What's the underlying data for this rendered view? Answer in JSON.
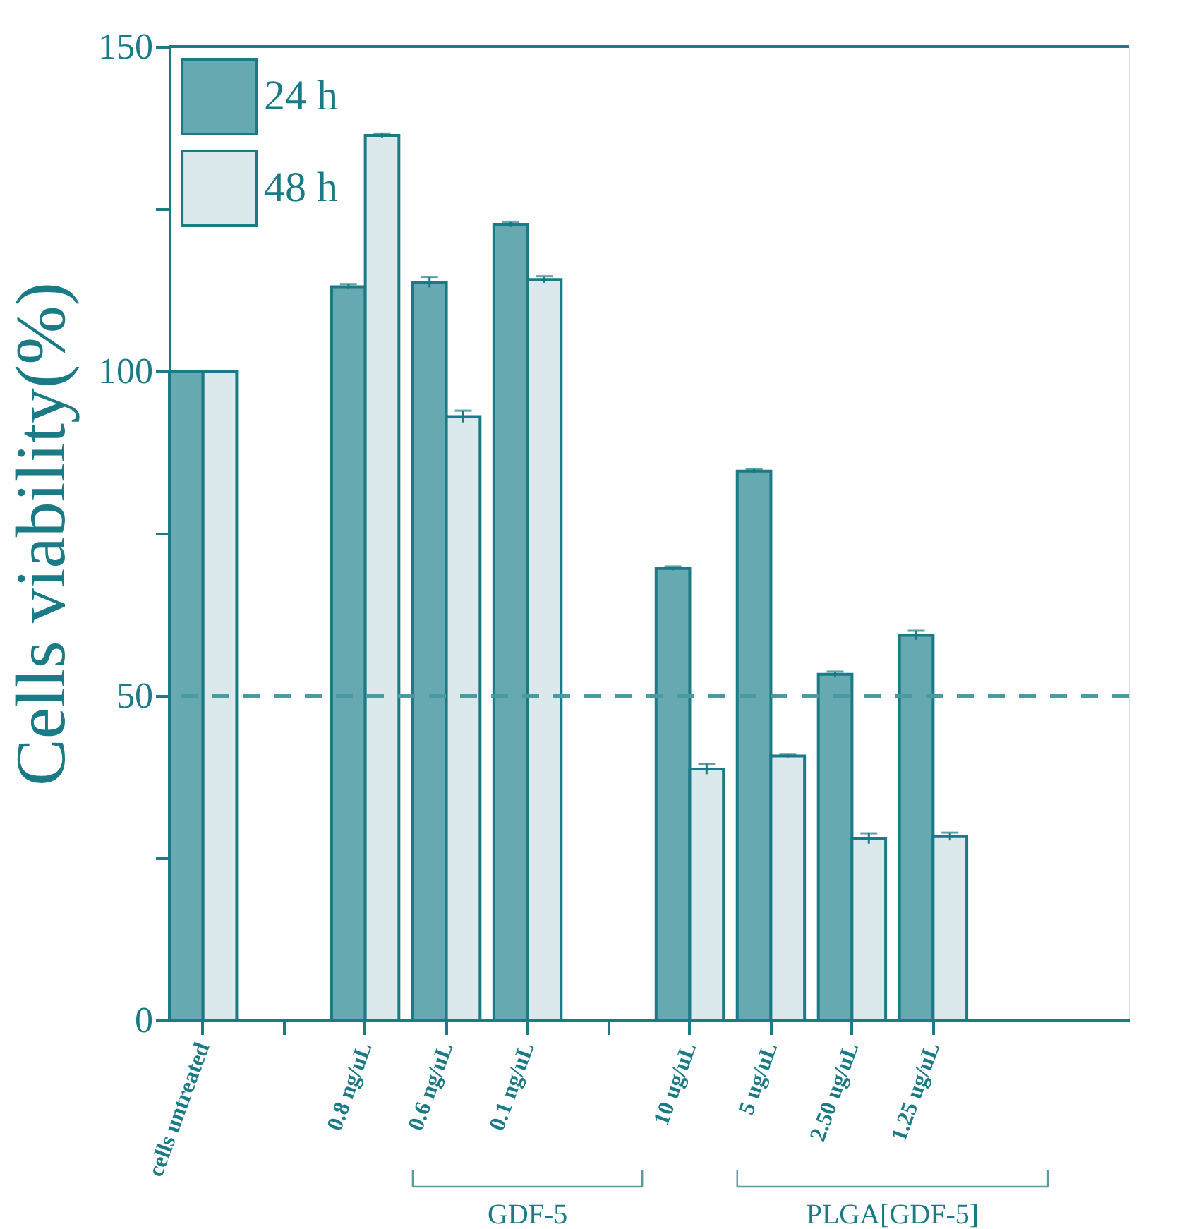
{
  "chart_data": {
    "type": "bar",
    "ylabel": "Cells viability(%)",
    "categories": [
      "cells untreated",
      null,
      "0.8 ng/uL",
      "0.6 ng/uL",
      "0.1 ng/uL",
      null,
      "10 ug/uL",
      "5 ug/uL",
      "2.50 ug/uL",
      "1.25 ug/uL"
    ],
    "series": [
      {
        "name": "24 h",
        "color": "#66a9b1",
        "values": [
          100,
          null,
          113.0,
          113.7,
          122.6,
          null,
          69.6,
          84.6,
          53.3,
          59.3
        ],
        "errors": [
          null,
          null,
          0.4,
          0.8,
          0.4,
          null,
          0.3,
          0.3,
          0.4,
          0.7
        ]
      },
      {
        "name": "48 h",
        "color": "#dbe9ec",
        "values": [
          100,
          null,
          136.3,
          93.0,
          114.1,
          null,
          38.7,
          40.7,
          28.0,
          28.3
        ],
        "errors": [
          null,
          null,
          0.3,
          0.9,
          0.5,
          null,
          0.8,
          0.2,
          0.8,
          0.6
        ]
      }
    ],
    "ylim": [
      0,
      150
    ],
    "yticks": [
      0,
      {
        "value": 25,
        "label": null
      },
      50,
      {
        "value": 75,
        "label": null
      },
      100,
      {
        "value": 125,
        "label": null
      },
      150
    ],
    "ref_lines": [
      {
        "axis": "y",
        "value": 50,
        "color": "#4a9aa2",
        "line_style": "dashed"
      }
    ],
    "annotations": [
      "GDF-5",
      "PLGA[GDF-5]"
    ],
    "legend": "top left",
    "grid": false
  }
}
